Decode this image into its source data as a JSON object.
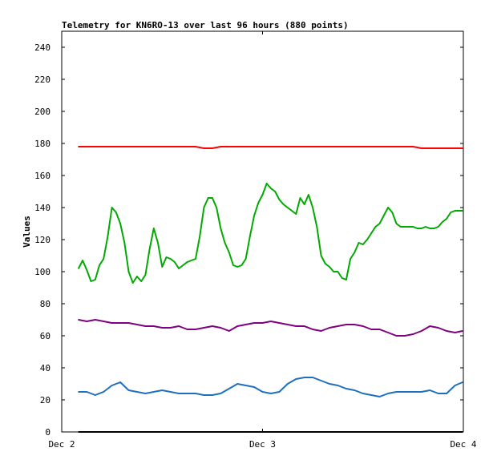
{
  "chart_data": {
    "type": "line",
    "title": "Telemetry for KN6RO-13 over last 96 hours (880 points)",
    "xlabel": "",
    "ylabel": "Values",
    "ylim": [
      0,
      250
    ],
    "yticks": [
      0,
      20,
      40,
      60,
      80,
      100,
      120,
      140,
      160,
      180,
      200,
      220,
      240
    ],
    "xlim_hours": [
      0,
      48
    ],
    "xticks": [
      {
        "label": "Dec 2",
        "hours": 0
      },
      {
        "label": "Dec 3",
        "hours": 24
      },
      {
        "label": "Dec 4",
        "hours": 48
      }
    ],
    "grid": false,
    "legend": "none",
    "series": [
      {
        "color": "#ff0000",
        "x": [
          2.0,
          3.0,
          4.0,
          5.0,
          6.0,
          7.0,
          8.0,
          9.0,
          10.0,
          11.0,
          12.0,
          13.0,
          14.0,
          15.0,
          16.0,
          17.0,
          18.0,
          19.0,
          20.0,
          21.0,
          22.0,
          23.0,
          24.0,
          25.0,
          26.0,
          27.0,
          28.0,
          29.0,
          30.0,
          31.0,
          32.0,
          33.0,
          34.0,
          35.0,
          36.0,
          37.0,
          38.0,
          39.0,
          40.0,
          41.0,
          42.0,
          43.0,
          44.0,
          45.0,
          46.0,
          47.0,
          47.9
        ],
        "values": [
          178,
          178,
          178,
          178,
          178,
          178,
          178,
          178,
          178,
          178,
          178,
          178,
          178,
          178,
          178,
          177,
          177,
          178,
          178,
          178,
          178,
          178,
          178,
          178,
          178,
          178,
          178,
          178,
          178,
          178,
          178,
          178,
          178,
          178,
          178,
          178,
          178,
          178,
          178,
          178,
          178,
          177,
          177,
          177,
          177,
          177,
          177
        ]
      },
      {
        "color": "#00aa00",
        "x": [
          2.0,
          2.5,
          3.0,
          3.5,
          4.0,
          4.5,
          5.0,
          5.5,
          6.0,
          6.5,
          7.0,
          7.5,
          8.0,
          8.5,
          9.0,
          9.5,
          10.0,
          10.5,
          11.0,
          11.5,
          12.0,
          12.5,
          13.0,
          13.5,
          14.0,
          14.5,
          15.0,
          15.5,
          16.0,
          16.5,
          17.0,
          17.5,
          18.0,
          18.5,
          19.0,
          19.5,
          20.0,
          20.5,
          21.0,
          21.5,
          22.0,
          22.5,
          23.0,
          23.5,
          24.0,
          24.5,
          25.0,
          25.5,
          26.0,
          26.5,
          27.0,
          27.5,
          28.0,
          28.5,
          29.0,
          29.5,
          30.0,
          30.5,
          31.0,
          31.5,
          32.0,
          32.5,
          33.0,
          33.5,
          34.0,
          34.5,
          35.0,
          35.5,
          36.0,
          36.5,
          37.0,
          37.5,
          38.0,
          38.5,
          39.0,
          39.5,
          40.0,
          40.5,
          41.0,
          41.5,
          42.0,
          42.5,
          43.0,
          43.5,
          44.0,
          44.5,
          45.0,
          45.5,
          46.0,
          46.5,
          47.0,
          47.5,
          47.9
        ],
        "values": [
          102,
          107,
          101,
          94,
          95,
          104,
          108,
          122,
          140,
          137,
          130,
          118,
          100,
          93,
          97,
          94,
          98,
          114,
          127,
          118,
          103,
          109,
          108,
          106,
          102,
          104,
          106,
          107,
          108,
          122,
          140,
          146,
          146,
          140,
          127,
          118,
          112,
          104,
          103,
          104,
          108,
          122,
          135,
          143,
          148,
          155,
          152,
          150,
          145,
          142,
          140,
          138,
          136,
          146,
          142,
          148,
          140,
          128,
          110,
          105,
          103,
          100,
          100,
          96,
          95,
          108,
          112,
          118,
          117,
          120,
          124,
          128,
          130,
          135,
          140,
          137,
          130,
          128,
          128,
          128,
          128,
          127,
          127,
          128,
          127,
          127,
          128,
          131,
          133,
          137,
          138,
          138,
          138
        ]
      },
      {
        "color": "#800080",
        "x": [
          2.0,
          3.0,
          4.0,
          5.0,
          6.0,
          7.0,
          8.0,
          9.0,
          10.0,
          11.0,
          12.0,
          13.0,
          14.0,
          15.0,
          16.0,
          17.0,
          18.0,
          19.0,
          20.0,
          21.0,
          22.0,
          23.0,
          24.0,
          25.0,
          26.0,
          27.0,
          28.0,
          29.0,
          30.0,
          31.0,
          32.0,
          33.0,
          34.0,
          35.0,
          36.0,
          37.0,
          38.0,
          39.0,
          40.0,
          41.0,
          42.0,
          43.0,
          44.0,
          45.0,
          46.0,
          47.0,
          47.9
        ],
        "values": [
          70,
          69,
          70,
          69,
          68,
          68,
          68,
          67,
          66,
          66,
          65,
          65,
          66,
          64,
          64,
          65,
          66,
          65,
          63,
          66,
          67,
          68,
          68,
          69,
          68,
          67,
          66,
          66,
          64,
          63,
          65,
          66,
          67,
          67,
          66,
          64,
          64,
          62,
          60,
          60,
          61,
          63,
          66,
          65,
          63,
          62,
          63
        ]
      },
      {
        "color": "#1e6fc0",
        "x": [
          2.0,
          3.0,
          4.0,
          5.0,
          6.0,
          7.0,
          8.0,
          9.0,
          10.0,
          11.0,
          12.0,
          13.0,
          14.0,
          15.0,
          16.0,
          17.0,
          18.0,
          19.0,
          20.0,
          21.0,
          22.0,
          23.0,
          24.0,
          25.0,
          26.0,
          27.0,
          28.0,
          29.0,
          30.0,
          31.0,
          32.0,
          33.0,
          34.0,
          35.0,
          36.0,
          37.0,
          38.0,
          39.0,
          40.0,
          41.0,
          42.0,
          43.0,
          44.0,
          45.0,
          46.0,
          47.0,
          47.9
        ],
        "values": [
          25,
          25,
          23,
          25,
          29,
          31,
          26,
          25,
          24,
          25,
          26,
          25,
          24,
          24,
          24,
          23,
          23,
          24,
          27,
          30,
          29,
          28,
          25,
          24,
          25,
          30,
          33,
          34,
          34,
          32,
          30,
          29,
          27,
          26,
          24,
          23,
          22,
          24,
          25,
          25,
          25,
          25,
          26,
          24,
          24,
          29,
          31
        ]
      },
      {
        "color": "#000000",
        "x": [
          2.0,
          47.9
        ],
        "values": [
          0,
          0
        ]
      }
    ]
  }
}
